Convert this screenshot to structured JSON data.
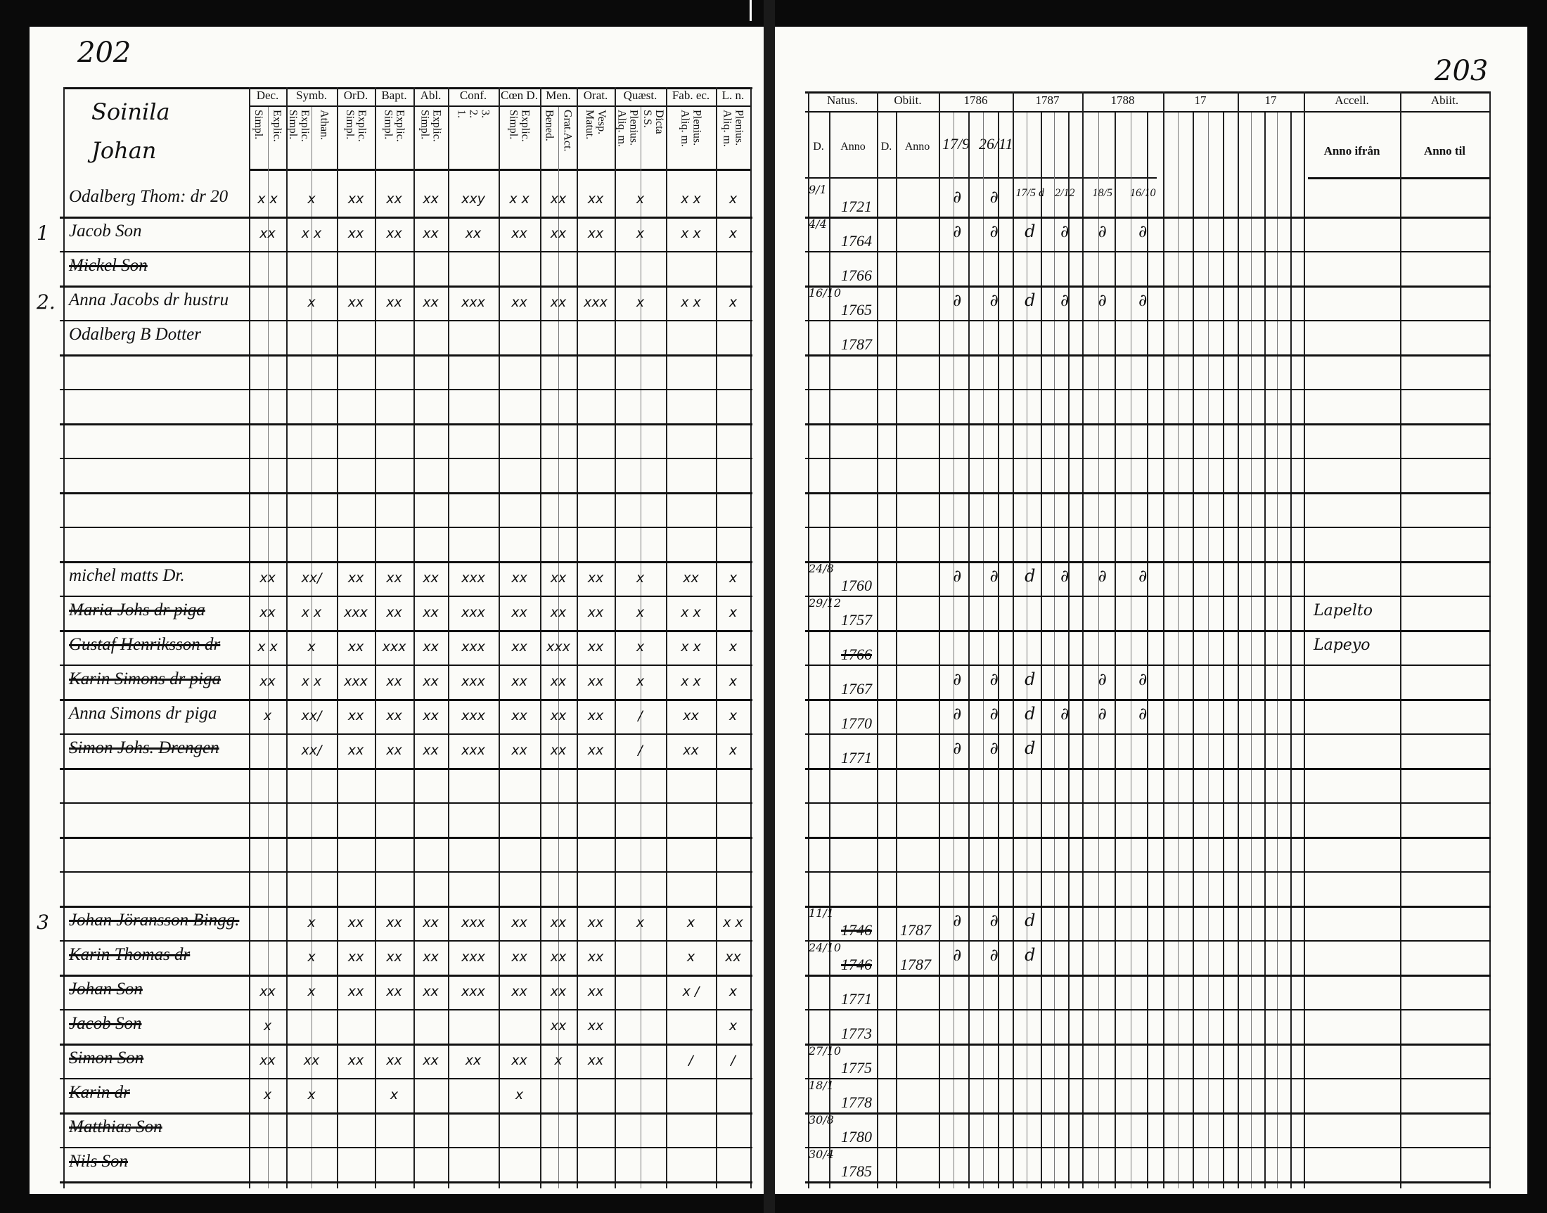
{
  "left_page": {
    "page_number": "202",
    "header_name": [
      "Soinila",
      "Johan"
    ],
    "columns": [
      {
        "label": "Dec.",
        "sub": [
          "Simpl.",
          "Explic."
        ]
      },
      {
        "label": "Symb.",
        "sub": [
          "Explic. Simpl.",
          "Athan."
        ]
      },
      {
        "label": "OrD.",
        "sub": [
          "Explic. Simpl."
        ]
      },
      {
        "label": "Bapt.",
        "sub": [
          "Explic. Simpl."
        ]
      },
      {
        "label": "Abl.",
        "sub": [
          "Explic. Simpl."
        ]
      },
      {
        "label": "Conf.",
        "sub": [
          "3. 2. 1."
        ]
      },
      {
        "label": "Cœn D.",
        "sub": [
          "Explic. Simpl."
        ]
      },
      {
        "label": "Men.",
        "sub": [
          "Bened.",
          "Grat.Act."
        ]
      },
      {
        "label": "Orat.",
        "sub": [
          "Vesp. Matut."
        ]
      },
      {
        "label": "Quæst.",
        "sub": [
          "Plenius. Aliq. m.",
          "Dicta S.S."
        ]
      },
      {
        "label": "Fab. ec.",
        "sub": [
          "Plenius. Aliq. m."
        ]
      },
      {
        "label": "L. n.",
        "sub": [
          "Plenius. Aliq. m."
        ]
      }
    ],
    "rows": [
      {
        "i": 0,
        "num": "",
        "name": "Odalberg Thom: dr 20",
        "struck": false,
        "marks": [
          "x x",
          "x",
          "xx",
          "xx",
          "xx",
          "xxy",
          "x x",
          "xx",
          "xx",
          "x",
          "x x",
          "x"
        ]
      },
      {
        "i": 1,
        "num": "1",
        "name": "Jacob Son",
        "struck": false,
        "marks": [
          "xx",
          "x x",
          "xx",
          "xx",
          "xx",
          "xx",
          "xx",
          "xx",
          "xx",
          "x",
          "x x",
          "x"
        ]
      },
      {
        "i": 2,
        "num": "",
        "name": "Mickel Son",
        "struck": true,
        "marks": []
      },
      {
        "i": 3,
        "num": "2.",
        "name": "Anna Jacobs dr hustru",
        "struck": false,
        "marks": [
          "",
          "x",
          "xx",
          "xx",
          "xx",
          "xxx",
          "xx",
          "xx",
          "xxx",
          "x",
          "x x",
          "x"
        ]
      },
      {
        "i": 4,
        "num": "",
        "name": "Odalberg B Dotter",
        "struck": false,
        "marks": []
      },
      {
        "i": 11,
        "num": "",
        "name": "michel matts Dr.",
        "struck": false,
        "marks": [
          "xx",
          "xx/",
          "xx",
          "xx",
          "xx",
          "xxx",
          "xx",
          "xx",
          "xx",
          "x",
          "xx",
          "x"
        ]
      },
      {
        "i": 12,
        "num": "",
        "name": "Maria Johs dr piga",
        "struck": true,
        "marks": [
          "xx",
          "x x",
          "xxx",
          "xx",
          "xx",
          "xxx",
          "xx",
          "xx",
          "xx",
          "x",
          "x x",
          "x"
        ]
      },
      {
        "i": 13,
        "num": "",
        "name": "Gustaf Henriksson dr",
        "struck": true,
        "marks": [
          "x x",
          "x",
          "xx",
          "xxx",
          "xx",
          "xxx",
          "xx",
          "xxx",
          "xx",
          "x",
          "x x",
          "x"
        ]
      },
      {
        "i": 14,
        "num": "",
        "name": "Karin Simons dr piga",
        "struck": true,
        "marks": [
          "xx",
          "x x",
          "xxx",
          "xx",
          "xx",
          "xxx",
          "xx",
          "xx",
          "xx",
          "x",
          "x x",
          "x"
        ]
      },
      {
        "i": 15,
        "num": "",
        "name": "Anna Simons dr piga",
        "struck": false,
        "marks": [
          "x",
          "xx/",
          "xx",
          "xx",
          "xx",
          "xxx",
          "xx",
          "xx",
          "xx",
          "/",
          "xx",
          "x"
        ]
      },
      {
        "i": 16,
        "num": "",
        "name": "Simon Johs. Drengen",
        "struck": true,
        "marks": [
          "",
          "xx/",
          "xx",
          "xx",
          "xx",
          "xxx",
          "xx",
          "xx",
          "xx",
          "/",
          "xx",
          "x"
        ]
      },
      {
        "i": 21,
        "num": "3",
        "name": "Johan Jöransson Bingg.",
        "struck": true,
        "marks": [
          "",
          "x",
          "xx",
          "xx",
          "xx",
          "xxx",
          "xx",
          "xx",
          "xx",
          "x",
          "x",
          "x x"
        ]
      },
      {
        "i": 22,
        "num": "",
        "name": "Karin Thomas dr",
        "struck": true,
        "marks": [
          "",
          "x",
          "xx",
          "xx",
          "xx",
          "xxx",
          "xx",
          "xx",
          "xx",
          "",
          "x",
          "xx"
        ]
      },
      {
        "i": 23,
        "num": "",
        "name": "Johan Son",
        "struck": true,
        "marks": [
          "xx",
          "x",
          "xx",
          "xx",
          "xx",
          "xxx",
          "xx",
          "xx",
          "xx",
          "",
          "x /",
          "x"
        ]
      },
      {
        "i": 24,
        "num": "",
        "name": "Jacob Son",
        "struck": true,
        "marks": [
          "x",
          "",
          "",
          "",
          "",
          "",
          "",
          "xx",
          "xx",
          "",
          "",
          "x"
        ]
      },
      {
        "i": 25,
        "num": "",
        "name": "Simon Son",
        "struck": true,
        "marks": [
          "xx",
          "xx",
          "xx",
          "xx",
          "xx",
          "xx",
          "xx",
          "x",
          "xx",
          "",
          "/",
          "/"
        ]
      },
      {
        "i": 26,
        "num": "",
        "name": "Karin dr",
        "struck": true,
        "marks": [
          "x",
          "x",
          "",
          "x",
          "",
          "",
          "x",
          "",
          "",
          "",
          "",
          ""
        ]
      },
      {
        "i": 27,
        "num": "",
        "name": "Matthias Son",
        "struck": true,
        "marks": []
      },
      {
        "i": 28,
        "num": "",
        "name": "Nils Son",
        "struck": true,
        "marks": []
      }
    ]
  },
  "right_page": {
    "page_number": "203",
    "columns": {
      "natus": "Natus.",
      "obiit": "Obiit.",
      "d": "D.",
      "anno": "Anno",
      "years": [
        "1786",
        "1787",
        "1788",
        "17",
        "17"
      ],
      "year1_dates": [
        "17/9",
        "26/11"
      ],
      "accell": "Accell.",
      "accell_sub": "Anno ifrån",
      "abiit": "Abiit.",
      "abiit_sub": "Anno til"
    },
    "rows": [
      {
        "i": 0,
        "natus_d": "9/1",
        "natus_anno": "1721",
        "obiit_anno": "",
        "marks": [
          "∂",
          "∂",
          "17/5 d",
          "2/12",
          "18/5",
          "16/10"
        ],
        "accell": ""
      },
      {
        "i": 1,
        "natus_d": "4/4",
        "natus_anno": "1764",
        "obiit_anno": "",
        "marks": [
          "∂",
          "∂",
          "d",
          "∂",
          "∂",
          "∂"
        ],
        "accell": ""
      },
      {
        "i": 2,
        "natus_d": "",
        "natus_anno": "1766",
        "obiit_anno": "",
        "marks": [],
        "accell": ""
      },
      {
        "i": 3,
        "natus_d": "16/10",
        "natus_anno": "1765",
        "obiit_anno": "",
        "marks": [
          "∂",
          "∂",
          "d",
          "∂",
          "∂",
          "∂"
        ],
        "accell": ""
      },
      {
        "i": 4,
        "natus_d": "",
        "natus_anno": "1787",
        "obiit_anno": "",
        "marks": [],
        "accell": ""
      },
      {
        "i": 11,
        "natus_d": "24/8",
        "natus_anno": "1760",
        "obiit_anno": "",
        "marks": [
          "∂",
          "∂",
          "d",
          "∂",
          "∂",
          "∂"
        ],
        "accell": ""
      },
      {
        "i": 12,
        "natus_d": "29/12",
        "natus_anno": "1757",
        "obiit_anno": "",
        "marks": [],
        "accell": "Lapelto"
      },
      {
        "i": 13,
        "natus_d": "",
        "natus_anno": "1766",
        "obiit_anno": "",
        "marks": [],
        "accell": "Lapeyo"
      },
      {
        "i": 14,
        "natus_d": "",
        "natus_anno": "1767",
        "obiit_anno": "",
        "marks": [
          "∂",
          "∂",
          "d",
          "",
          "∂",
          "∂"
        ],
        "accell": ""
      },
      {
        "i": 15,
        "natus_d": "",
        "natus_anno": "1770",
        "obiit_anno": "",
        "marks": [
          "∂",
          "∂",
          "d",
          "∂",
          "∂",
          "∂"
        ],
        "accell": ""
      },
      {
        "i": 16,
        "natus_d": "",
        "natus_anno": "1771",
        "obiit_anno": "",
        "marks": [
          "∂",
          "∂",
          "d",
          "",
          "",
          ""
        ],
        "accell": ""
      },
      {
        "i": 21,
        "natus_d": "11/1",
        "natus_anno": "1746",
        "obiit_anno": "1787",
        "marks": [
          "∂",
          "∂",
          "d",
          "",
          "",
          ""
        ],
        "accell": ""
      },
      {
        "i": 22,
        "natus_d": "24/10",
        "natus_anno": "1746",
        "obiit_anno": "1787",
        "marks": [
          "∂",
          "∂",
          "d",
          "",
          "",
          ""
        ],
        "accell": ""
      },
      {
        "i": 23,
        "natus_d": "",
        "natus_anno": "1771",
        "obiit_anno": "",
        "marks": [],
        "accell": ""
      },
      {
        "i": 24,
        "natus_d": "",
        "natus_anno": "1773",
        "obiit_anno": "",
        "marks": [],
        "accell": ""
      },
      {
        "i": 25,
        "natus_d": "27/10",
        "natus_anno": "1775",
        "obiit_anno": "",
        "marks": [],
        "accell": ""
      },
      {
        "i": 26,
        "natus_d": "18/1",
        "natus_anno": "1778",
        "obiit_anno": "",
        "marks": [],
        "accell": ""
      },
      {
        "i": 27,
        "natus_d": "30/8",
        "natus_anno": "1780",
        "obiit_anno": "",
        "marks": [],
        "accell": ""
      },
      {
        "i": 28,
        "natus_d": "30/4",
        "natus_anno": "1785",
        "obiit_anno": "",
        "marks": [],
        "accell": ""
      }
    ]
  }
}
